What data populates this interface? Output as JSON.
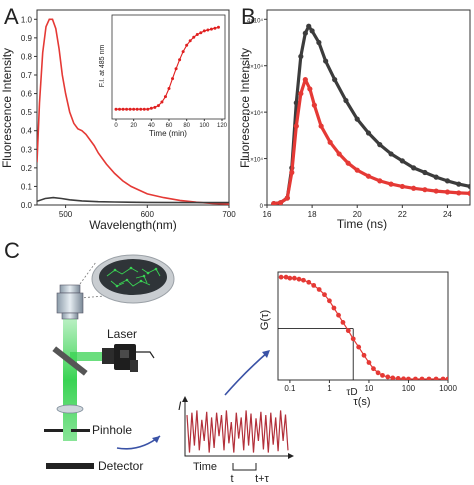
{
  "panels": {
    "a": {
      "letter": "A"
    },
    "b": {
      "letter": "B"
    },
    "c": {
      "letter": "C"
    }
  },
  "colors": {
    "red": "#e53935",
    "dark": "#3c3c3c",
    "green": "#39d353",
    "inset_red": "#e02020"
  },
  "chart_data": [
    {
      "id": "A-main",
      "type": "line",
      "xlabel": "Wavelength(nm)",
      "ylabel": "Fluorescence Intensity",
      "xlim": [
        465,
        700
      ],
      "ylim": [
        0,
        1.05
      ],
      "xticks": [
        "500",
        "600",
        "700"
      ],
      "xtick_values": [
        500,
        600,
        700
      ],
      "yticks": [
        "0.0",
        "0.1",
        "0.2",
        "0.3",
        "0.4",
        "0.5",
        "0.6",
        "0.7",
        "0.8",
        "0.9",
        "1.0"
      ],
      "ytick_values": [
        0,
        0.1,
        0.2,
        0.3,
        0.4,
        0.5,
        0.6,
        0.7,
        0.8,
        0.9,
        1.0
      ],
      "series": [
        {
          "color": "#e53935",
          "x": [
            465,
            468,
            472,
            476,
            480,
            484,
            488,
            492,
            496,
            500,
            505,
            510,
            515,
            520,
            525,
            530,
            535,
            540,
            545,
            550,
            560,
            570,
            580,
            590,
            600,
            620,
            640,
            660,
            680,
            700
          ],
          "y": [
            0.23,
            0.55,
            0.82,
            0.96,
            1.0,
            1.0,
            0.95,
            0.84,
            0.7,
            0.6,
            0.5,
            0.44,
            0.41,
            0.4,
            0.38,
            0.35,
            0.32,
            0.28,
            0.25,
            0.22,
            0.17,
            0.13,
            0.1,
            0.08,
            0.06,
            0.04,
            0.025,
            0.015,
            0.008,
            0.005
          ]
        },
        {
          "color": "#3c3c3c",
          "x": [
            465,
            475,
            485,
            495,
            505,
            520,
            540,
            560,
            600,
            650,
            700
          ],
          "y": [
            0.02,
            0.035,
            0.04,
            0.035,
            0.028,
            0.022,
            0.018,
            0.016,
            0.014,
            0.013,
            0.013
          ]
        }
      ]
    },
    {
      "id": "A-inset",
      "type": "scatter",
      "xlabel": "Time (min)",
      "ylabel": "F.I. at 485 nm",
      "xlim": [
        0,
        120
      ],
      "ylim": [
        0,
        1
      ],
      "xticks": [
        "0",
        "20",
        "40",
        "60",
        "80",
        "100",
        "120"
      ],
      "xtick_values": [
        0,
        20,
        40,
        60,
        80,
        100,
        120
      ],
      "series": [
        {
          "color": "#e02020",
          "x": [
            0,
            4,
            8,
            12,
            16,
            20,
            24,
            28,
            32,
            36,
            40,
            44,
            48,
            52,
            56,
            60,
            64,
            68,
            72,
            76,
            80,
            84,
            88,
            92,
            96,
            100,
            104,
            108,
            112,
            116
          ],
          "y": [
            0.02,
            0.02,
            0.02,
            0.02,
            0.02,
            0.02,
            0.02,
            0.02,
            0.02,
            0.02,
            0.03,
            0.04,
            0.06,
            0.1,
            0.16,
            0.25,
            0.36,
            0.47,
            0.57,
            0.66,
            0.73,
            0.78,
            0.82,
            0.85,
            0.87,
            0.89,
            0.9,
            0.91,
            0.92,
            0.93
          ]
        }
      ]
    },
    {
      "id": "B",
      "type": "scatter",
      "xlabel": "Time (ns)",
      "ylabel": "Fluorescence Intensity",
      "xlim": [
        16,
        25
      ],
      "ylim": [
        0,
        42000
      ],
      "xticks": [
        "16",
        "18",
        "20",
        "22",
        "24"
      ],
      "xtick_values": [
        16,
        18,
        20,
        22,
        24
      ],
      "yticks": [
        "0",
        "1×10⁴",
        "2×10⁴",
        "3×10⁴",
        "4×10⁴"
      ],
      "ytick_values": [
        0,
        10000,
        20000,
        30000,
        40000
      ],
      "series": [
        {
          "color": "#3c3c3c",
          "x": [
            16.3,
            16.6,
            16.9,
            17.1,
            17.3,
            17.5,
            17.7,
            17.85,
            18.0,
            18.3,
            18.6,
            19.0,
            19.5,
            20,
            20.5,
            21,
            21.5,
            22,
            22.5,
            23,
            23.5,
            24,
            24.5,
            25
          ],
          "y": [
            300,
            500,
            1500,
            8000,
            22000,
            32000,
            37000,
            38500,
            37500,
            35000,
            31000,
            27000,
            22500,
            18500,
            15500,
            13000,
            11000,
            9500,
            8000,
            7000,
            6000,
            5200,
            4500,
            4000
          ]
        },
        {
          "color": "#e53935",
          "x": [
            16.3,
            16.6,
            16.9,
            17.1,
            17.3,
            17.5,
            17.7,
            17.9,
            18.1,
            18.4,
            18.8,
            19.2,
            19.6,
            20,
            20.5,
            21,
            21.5,
            22,
            22.5,
            23,
            23.5,
            24,
            24.5,
            25
          ],
          "y": [
            300,
            500,
            1500,
            7000,
            17000,
            24000,
            27000,
            25000,
            21500,
            17000,
            13500,
            11000,
            9000,
            7500,
            6200,
            5200,
            4500,
            4000,
            3600,
            3300,
            3000,
            2800,
            2600,
            2500
          ]
        }
      ]
    },
    {
      "id": "C-corr",
      "type": "scatter",
      "xlabel": "τ(s)",
      "ylabel": "G(τ)",
      "x_scale": "log",
      "xlim": [
        0.05,
        1000
      ],
      "ylim": [
        0,
        1.05
      ],
      "xticks": [
        "0.1",
        "1",
        "10",
        "100",
        "1000"
      ],
      "xtick_values": [
        0.1,
        1,
        10,
        100,
        1000
      ],
      "annotation": "τD",
      "tau_d": 4,
      "series": [
        {
          "color": "#e53935",
          "x": [
            0.06,
            0.08,
            0.1,
            0.13,
            0.17,
            0.22,
            0.3,
            0.4,
            0.55,
            0.75,
            1,
            1.3,
            1.7,
            2.2,
            3,
            4,
            5.5,
            7.5,
            10,
            13,
            17,
            22,
            30,
            40,
            55,
            75,
            100,
            150,
            220,
            330,
            500,
            750,
            1000
          ],
          "y": [
            1.0,
            1.0,
            0.99,
            0.99,
            0.98,
            0.97,
            0.95,
            0.92,
            0.88,
            0.83,
            0.77,
            0.7,
            0.63,
            0.56,
            0.48,
            0.4,
            0.32,
            0.24,
            0.17,
            0.11,
            0.07,
            0.045,
            0.03,
            0.02,
            0.015,
            0.012,
            0.01,
            0.01,
            0.01,
            0.01,
            0.01,
            0.01,
            0.01
          ]
        }
      ]
    }
  ],
  "panel_c": {
    "laser_label": "Laser",
    "pinhole_label": "Pinhole",
    "detector_label": "Detector",
    "trace": {
      "y_label": "I",
      "x_label": "Time",
      "t_label": "t",
      "t_tau_label": "t+τ",
      "values": [
        0.85,
        0.05,
        0.9,
        0.2,
        0.95,
        0.1,
        0.75,
        0.3,
        0.92,
        0.05,
        0.8,
        0.15,
        0.9,
        0.4,
        0.85,
        0.1,
        0.95,
        0.25,
        0.7,
        0.05,
        0.9,
        0.35,
        0.8,
        0.1,
        0.95,
        0.2,
        0.88,
        0.05,
        0.78,
        0.3,
        0.92,
        0.12,
        0.85,
        0.05,
        0.9,
        0.22,
        0.8,
        0.08,
        0.95,
        0.3,
        0.86,
        0.1
      ]
    }
  }
}
